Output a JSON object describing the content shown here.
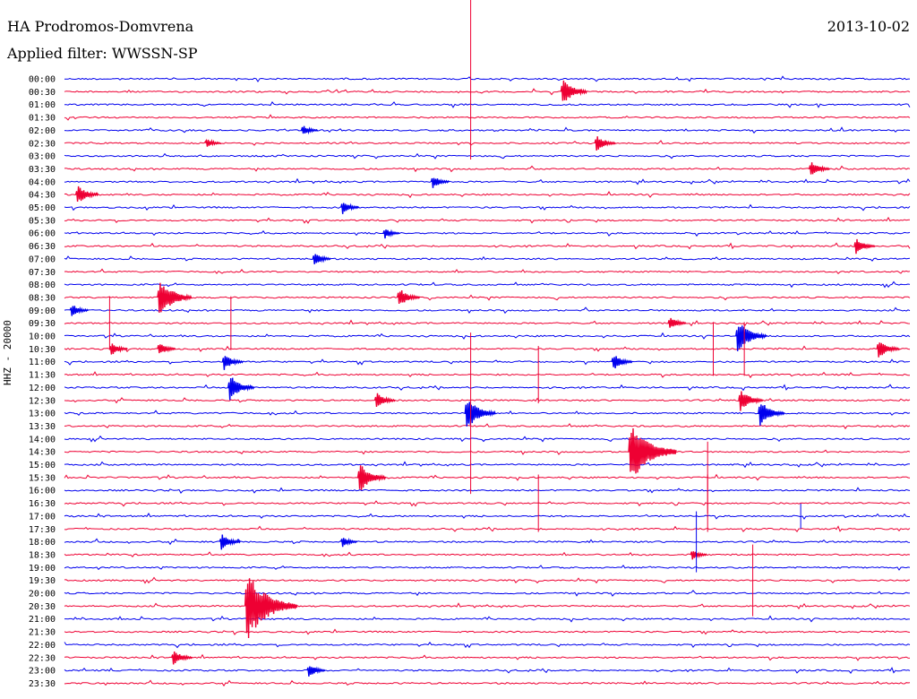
{
  "header": {
    "station": "HA Prodromos-Domvrena",
    "filter": "Applied filter: WWSSN-SP",
    "date": "2013-10-02",
    "channel_label": "HHZ - 20000"
  },
  "colors": {
    "even_trace": "#0000ee",
    "odd_trace": "#ee0033",
    "event_line": "#ee0033"
  },
  "chart_data": {
    "type": "line",
    "title": "HA Prodromos-Domvrena",
    "subtitle": "Applied filter: WWSSN-SP",
    "date": "2013-10-02",
    "ylabel": "HHZ - 20000",
    "row_labels": [
      "00:00",
      "00:30",
      "01:00",
      "01:30",
      "02:00",
      "02:30",
      "03:00",
      "03:30",
      "04:00",
      "04:30",
      "05:00",
      "05:30",
      "06:00",
      "06:30",
      "07:00",
      "07:30",
      "08:00",
      "08:30",
      "09:00",
      "09:30",
      "10:00",
      "10:30",
      "11:00",
      "11:30",
      "12:00",
      "12:30",
      "13:00",
      "13:30",
      "14:00",
      "14:30",
      "15:00",
      "15:30",
      "16:00",
      "16:30",
      "17:00",
      "17:30",
      "18:00",
      "18:30",
      "19:00",
      "19:30",
      "20:00",
      "20:30",
      "21:00",
      "21:30",
      "22:00",
      "22:30",
      "23:00",
      "23:30"
    ],
    "row_span_minutes": 30,
    "grid": false,
    "events": [
      {
        "row": "00:30",
        "minute": 17.6,
        "amplitude": 18
      },
      {
        "row": "02:00",
        "minute": 8.4,
        "amplitude": 8
      },
      {
        "row": "02:30",
        "minute": 5.0,
        "amplitude": 7
      },
      {
        "row": "02:30",
        "minute": 18.8,
        "amplitude": 12
      },
      {
        "row": "03:30",
        "minute": 26.4,
        "amplitude": 12
      },
      {
        "row": "04:00",
        "minute": 13.0,
        "amplitude": 10
      },
      {
        "row": "04:30",
        "minute": 0.4,
        "amplitude": 14
      },
      {
        "row": "05:00",
        "minute": 9.8,
        "amplitude": 10
      },
      {
        "row": "06:00",
        "minute": 11.3,
        "amplitude": 8
      },
      {
        "row": "06:30",
        "minute": 28.0,
        "amplitude": 12
      },
      {
        "row": "07:00",
        "minute": 8.8,
        "amplitude": 10
      },
      {
        "row": "08:30",
        "minute": 3.3,
        "amplitude": 26
      },
      {
        "row": "08:30",
        "minute": 11.8,
        "amplitude": 14
      },
      {
        "row": "09:00",
        "minute": 0.2,
        "amplitude": 10
      },
      {
        "row": "09:30",
        "minute": 21.4,
        "amplitude": 10
      },
      {
        "row": "10:00",
        "minute": 23.8,
        "amplitude": 22
      },
      {
        "row": "10:30",
        "minute": 1.6,
        "amplitude": 10
      },
      {
        "row": "10:30",
        "minute": 3.3,
        "amplitude": 10
      },
      {
        "row": "10:30",
        "minute": 28.8,
        "amplitude": 14
      },
      {
        "row": "11:00",
        "minute": 5.6,
        "amplitude": 12
      },
      {
        "row": "11:00",
        "minute": 19.4,
        "amplitude": 12
      },
      {
        "row": "12:00",
        "minute": 5.8,
        "amplitude": 18
      },
      {
        "row": "12:30",
        "minute": 11.0,
        "amplitude": 12
      },
      {
        "row": "12:30",
        "minute": 23.9,
        "amplitude": 16
      },
      {
        "row": "13:00",
        "minute": 14.2,
        "amplitude": 22
      },
      {
        "row": "13:00",
        "minute": 24.6,
        "amplitude": 18
      },
      {
        "row": "14:30",
        "minute": 20.0,
        "amplitude": 40
      },
      {
        "row": "15:30",
        "minute": 10.4,
        "amplitude": 20
      },
      {
        "row": "18:00",
        "minute": 5.5,
        "amplitude": 12
      },
      {
        "row": "18:00",
        "minute": 9.8,
        "amplitude": 8
      },
      {
        "row": "18:30",
        "minute": 22.2,
        "amplitude": 8
      },
      {
        "row": "20:30",
        "minute": 6.4,
        "amplitude": 44
      },
      {
        "row": "22:30",
        "minute": 3.8,
        "amplitude": 12
      },
      {
        "row": "23:00",
        "minute": 8.6,
        "amplitude": 10
      }
    ],
    "spikes": [
      {
        "row": "00:00",
        "minute": 14.4,
        "amplitude": 90
      },
      {
        "row": "13:00",
        "minute": 14.4,
        "amplitude": 90
      },
      {
        "row": "09:30",
        "minute": 1.6,
        "amplitude": 30
      },
      {
        "row": "09:30",
        "minute": 5.9,
        "amplitude": 30
      },
      {
        "row": "11:30",
        "minute": 16.8,
        "amplitude": 32
      },
      {
        "row": "16:30",
        "minute": 16.8,
        "amplitude": 32
      },
      {
        "row": "15:30",
        "minute": 22.8,
        "amplitude": 40
      },
      {
        "row": "16:30",
        "minute": 22.8,
        "amplitude": 32
      },
      {
        "row": "10:30",
        "minute": 23.0,
        "amplitude": 30
      },
      {
        "row": "10:30",
        "minute": 24.1,
        "amplitude": 30
      },
      {
        "row": "18:00",
        "minute": 22.4,
        "amplitude": 34
      },
      {
        "row": "19:30",
        "minute": 24.4,
        "amplitude": 40
      },
      {
        "row": "17:00",
        "minute": 26.1,
        "amplitude": 14
      }
    ]
  }
}
